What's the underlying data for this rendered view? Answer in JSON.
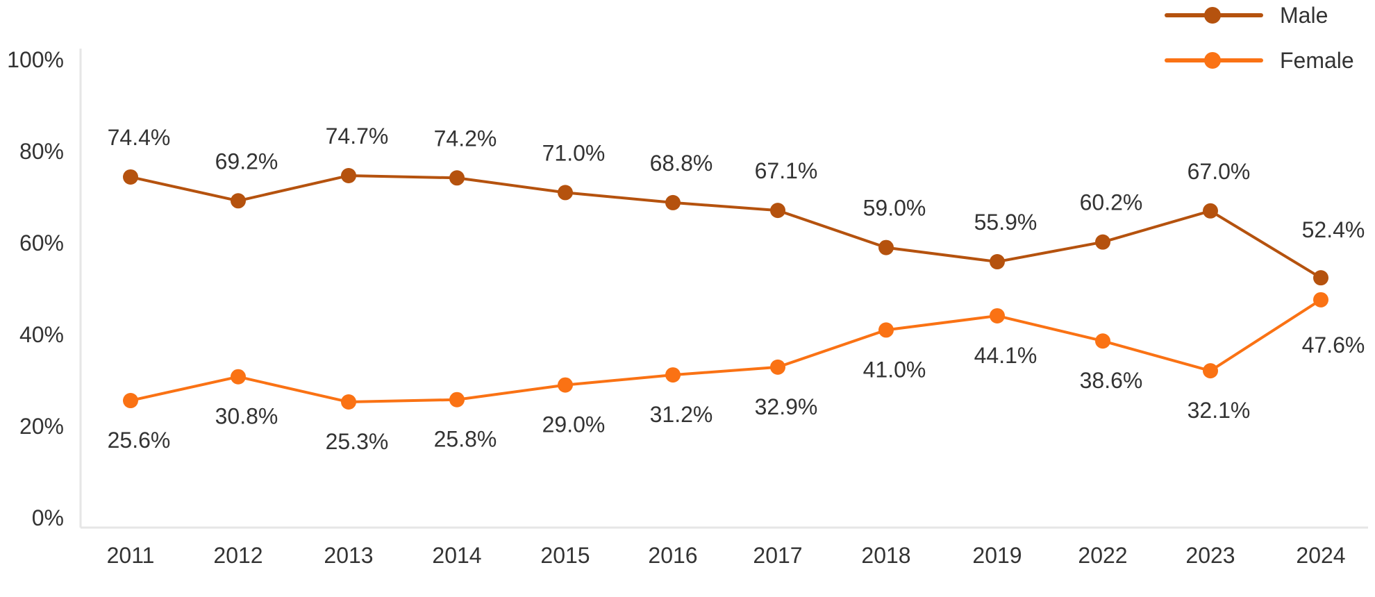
{
  "chart_data": {
    "type": "line",
    "title": "",
    "xlabel": "",
    "ylabel": "",
    "categories": [
      "2011",
      "2012",
      "2013",
      "2014",
      "2015",
      "2016",
      "2017",
      "2018",
      "2019",
      "2022",
      "2023",
      "2024"
    ],
    "ylim": [
      0,
      100
    ],
    "yticks": [
      0,
      20,
      40,
      60,
      80,
      100
    ],
    "ytick_labels": [
      "0%",
      "20%",
      "40%",
      "60%",
      "80%",
      "100%"
    ],
    "grid": false,
    "legend_position": "top-right",
    "series": [
      {
        "name": "Male",
        "color": "#b5520e",
        "values": [
          74.4,
          69.2,
          74.7,
          74.2,
          71.0,
          68.8,
          67.1,
          59.0,
          55.9,
          60.2,
          67.0,
          52.4
        ],
        "labels": [
          "74.4%",
          "69.2%",
          "74.7%",
          "74.2%",
          "71.0%",
          "68.8%",
          "67.1%",
          "59.0%",
          "55.9%",
          "60.2%",
          "67.0%",
          "52.4%"
        ]
      },
      {
        "name": "Female",
        "color": "#fa7214",
        "values": [
          25.6,
          30.8,
          25.3,
          25.8,
          29.0,
          31.2,
          32.9,
          41.0,
          44.1,
          38.6,
          32.1,
          47.6
        ],
        "labels": [
          "25.6%",
          "30.8%",
          "25.3%",
          "25.8%",
          "29.0%",
          "31.2%",
          "32.9%",
          "41.0%",
          "44.1%",
          "38.6%",
          "32.1%",
          "47.6%"
        ]
      }
    ]
  }
}
